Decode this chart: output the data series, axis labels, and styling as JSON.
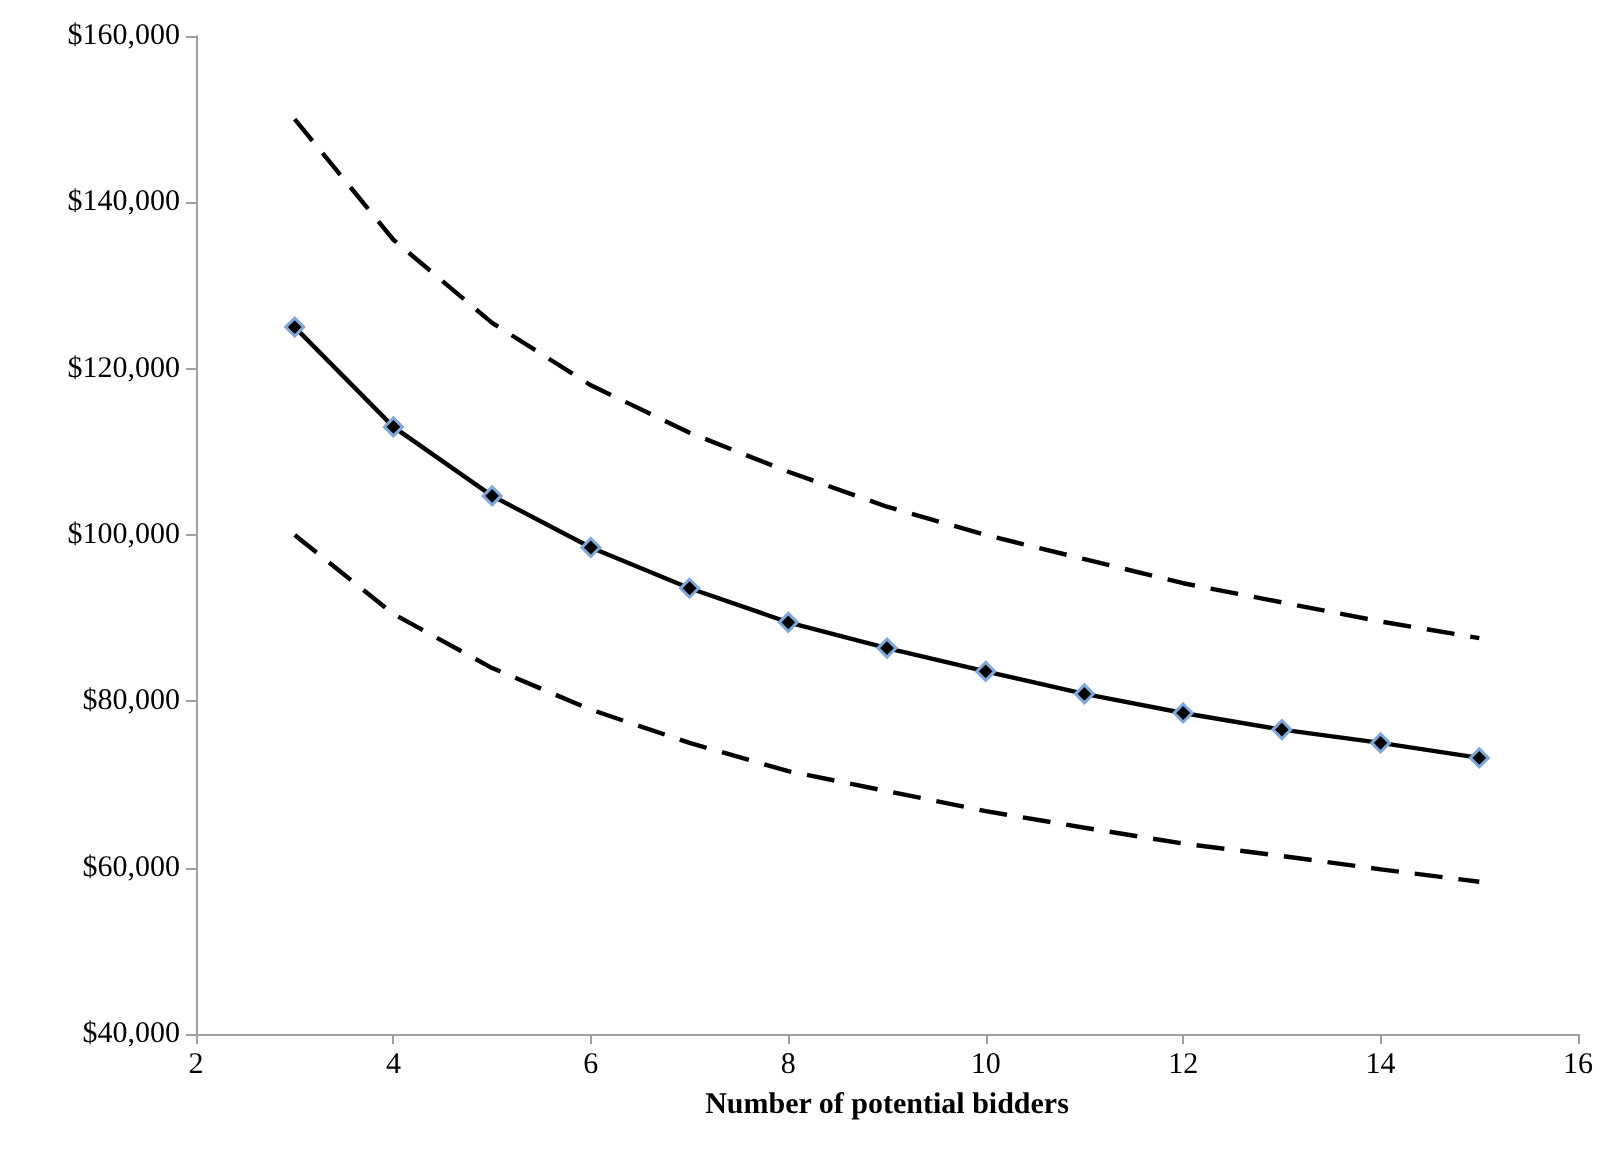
{
  "chart_data": {
    "type": "line",
    "xlabel": "Number of potential bidders",
    "x": [
      3,
      4,
      5,
      6,
      7,
      8,
      9,
      10,
      11,
      12,
      13,
      14,
      15
    ],
    "xlim": [
      2,
      16
    ],
    "xticks": [
      2,
      4,
      6,
      8,
      10,
      12,
      14,
      16
    ],
    "ylim": [
      40000,
      160000
    ],
    "yticks": [
      {
        "value": 40000,
        "label": "$40,000"
      },
      {
        "value": 60000,
        "label": "$60,000"
      },
      {
        "value": 80000,
        "label": "$80,000"
      },
      {
        "value": 100000,
        "label": "$100,000"
      },
      {
        "value": 120000,
        "label": "$120,000"
      },
      {
        "value": 140000,
        "label": "$140,000"
      },
      {
        "value": 160000,
        "label": "$160,000"
      }
    ],
    "grid": false,
    "series": [
      {
        "color": "#000000",
        "line_style": "dashed",
        "marker": "none",
        "values": [
          150000,
          135500,
          125500,
          118000,
          112300,
          107600,
          103400,
          100000,
          97100,
          94200,
          91900,
          89600,
          87600
        ]
      },
      {
        "color": "#000000",
        "line_style": "solid",
        "marker": "diamond",
        "values": [
          125000,
          113000,
          104700,
          98500,
          93600,
          89500,
          86400,
          83600,
          80900,
          78600,
          76600,
          75000,
          73200
        ]
      },
      {
        "color": "#000000",
        "line_style": "dashed",
        "marker": "none",
        "values": [
          100000,
          90500,
          84000,
          79000,
          75000,
          71600,
          69200,
          66800,
          64800,
          62900,
          61400,
          59800,
          58300
        ]
      }
    ]
  }
}
